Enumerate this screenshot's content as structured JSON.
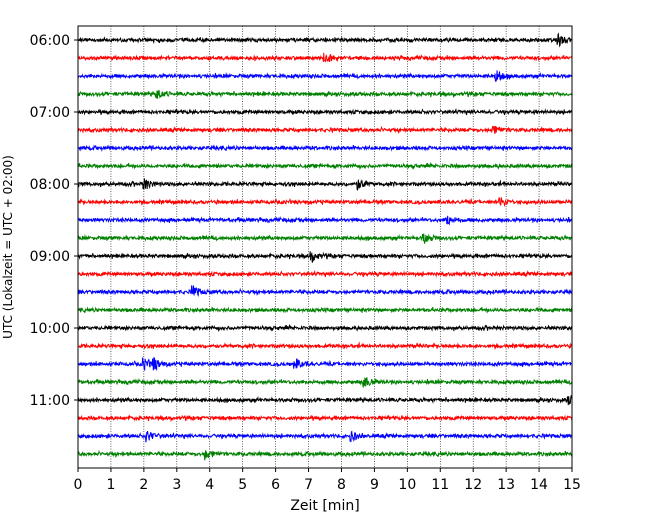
{
  "chart_data": {
    "type": "line",
    "title": "",
    "xlabel": "Zeit  [min]",
    "ylabel": "UTC (Lokalzeit = UTC + 02:00)",
    "xlim": [
      0,
      15
    ],
    "x_ticks": [
      "0",
      "1",
      "2",
      "3",
      "4",
      "5",
      "6",
      "7",
      "8",
      "9",
      "10",
      "11",
      "12",
      "13",
      "14",
      "15"
    ],
    "y_ticks": [
      "06:00",
      "07:00",
      "08:00",
      "09:00",
      "10:00",
      "11:00"
    ],
    "grid": {
      "x": "dotted vertical at every minute",
      "y": false
    },
    "legend": "none",
    "trace_colors": [
      "#000000",
      "#ff0000",
      "#0000ff",
      "#008000"
    ],
    "traces": [
      {
        "start": "06:00",
        "color": "#000000",
        "events_min": [
          14.6
        ]
      },
      {
        "start": "06:15",
        "color": "#ff0000",
        "events_min": [
          7.5
        ]
      },
      {
        "start": "06:30",
        "color": "#0000ff",
        "events_min": [
          12.7
        ]
      },
      {
        "start": "06:45",
        "color": "#008000",
        "events_min": [
          2.4
        ]
      },
      {
        "start": "07:00",
        "color": "#000000",
        "events_min": []
      },
      {
        "start": "07:15",
        "color": "#ff0000",
        "events_min": [
          12.6
        ]
      },
      {
        "start": "07:30",
        "color": "#0000ff",
        "events_min": []
      },
      {
        "start": "07:45",
        "color": "#008000",
        "events_min": []
      },
      {
        "start": "08:00",
        "color": "#000000",
        "events_min": [
          2.0,
          8.5
        ]
      },
      {
        "start": "08:15",
        "color": "#ff0000",
        "events_min": [
          12.8
        ]
      },
      {
        "start": "08:30",
        "color": "#0000ff",
        "events_min": [
          11.2
        ]
      },
      {
        "start": "08:45",
        "color": "#008000",
        "events_min": [
          10.5
        ]
      },
      {
        "start": "09:00",
        "color": "#000000",
        "events_min": [
          7.1
        ]
      },
      {
        "start": "09:15",
        "color": "#ff0000",
        "events_min": []
      },
      {
        "start": "09:30",
        "color": "#0000ff",
        "events_min": [
          3.5
        ]
      },
      {
        "start": "09:45",
        "color": "#008000",
        "events_min": []
      },
      {
        "start": "10:00",
        "color": "#000000",
        "events_min": []
      },
      {
        "start": "10:15",
        "color": "#ff0000",
        "events_min": []
      },
      {
        "start": "10:30",
        "color": "#0000ff",
        "events_min": [
          2.0,
          2.3,
          6.6
        ]
      },
      {
        "start": "10:45",
        "color": "#008000",
        "events_min": [
          8.7
        ]
      },
      {
        "start": "11:00",
        "color": "#000000",
        "events_min": [
          14.9
        ]
      },
      {
        "start": "11:15",
        "color": "#ff0000",
        "events_min": []
      },
      {
        "start": "11:30",
        "color": "#0000ff",
        "events_min": [
          2.1,
          8.3
        ]
      },
      {
        "start": "11:45",
        "color": "#008000",
        "events_min": [
          3.9
        ]
      }
    ]
  }
}
